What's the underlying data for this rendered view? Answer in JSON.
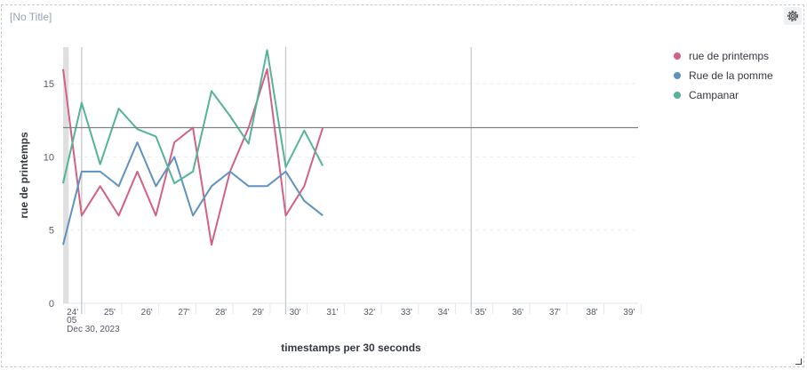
{
  "panel": {
    "title": "[No Title]"
  },
  "colors": {
    "series": [
      "#d36086",
      "#6092c0",
      "#54b399"
    ],
    "threshold": "#7d8087",
    "band": "#dfdfdf",
    "grid": "#eeeeee"
  },
  "chart_data": {
    "type": "line",
    "xlabel": "timestamps per 30 seconds",
    "ylabel": "rue de printemps",
    "ylim": [
      0,
      17.5
    ],
    "y_ticks": [
      0,
      5,
      10,
      15
    ],
    "x_ticks": [
      "24'",
      "25'",
      "26'",
      "27'",
      "28'",
      "29'",
      "30'",
      "31'",
      "32'",
      "33'",
      "34'",
      "35'",
      "36'",
      "37'",
      "38'",
      "39'"
    ],
    "x_tick_sub": "05",
    "x_date": "Dec 30, 2023",
    "x": [
      23.9,
      24.4,
      24.9,
      25.4,
      25.9,
      26.4,
      26.9,
      27.4,
      27.9,
      28.4,
      28.9,
      29.4,
      29.9,
      30.4,
      30.9,
      31.4
    ],
    "series": [
      {
        "name": "rue de printemps",
        "values": [
          16,
          6,
          8,
          6,
          9,
          6,
          11,
          12,
          4,
          9,
          12,
          16,
          6,
          8,
          12,
          null
        ]
      },
      {
        "name": "Rue de la pomme",
        "values": [
          4,
          9,
          9,
          8,
          11,
          8,
          10,
          6,
          8,
          9,
          8,
          8,
          9,
          7,
          6,
          null
        ]
      },
      {
        "name": "Campanar",
        "values": [
          8.2,
          13.7,
          9.5,
          13.3,
          11.9,
          11.4,
          8.2,
          9,
          14.5,
          12.8,
          10.9,
          17.3,
          9.3,
          11.8,
          9.4,
          null
        ]
      }
    ],
    "threshold_y": 12,
    "vertical_markers": [
      24.4,
      29.9,
      34.9
    ],
    "band_x": [
      23.9,
      24.05
    ],
    "grid": true,
    "legend_position": "right"
  }
}
